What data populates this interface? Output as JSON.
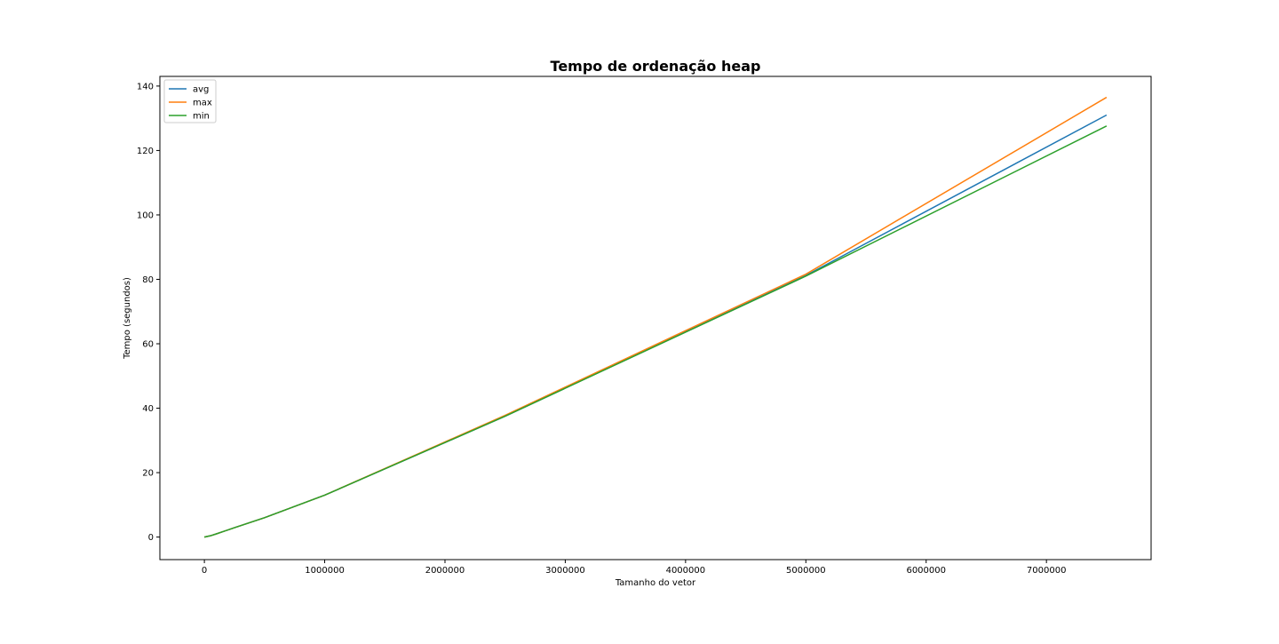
{
  "chart_data": {
    "type": "line",
    "title": "Tempo de ordenação heap",
    "xlabel": "Tamanho do vetor",
    "ylabel": "Tempo (segundos)",
    "xlim": [
      -370000,
      7870000
    ],
    "ylim": [
      -7,
      143
    ],
    "xticks": [
      0,
      1000000,
      2000000,
      3000000,
      4000000,
      5000000,
      6000000,
      7000000
    ],
    "xtick_labels": [
      "0",
      "1000000",
      "2000000",
      "3000000",
      "4000000",
      "5000000",
      "6000000",
      "7000000"
    ],
    "yticks": [
      0,
      20,
      40,
      60,
      80,
      100,
      120,
      140
    ],
    "ytick_labels": [
      "0",
      "20",
      "40",
      "60",
      "80",
      "100",
      "120",
      "140"
    ],
    "grid": false,
    "legend_position": "top-left",
    "x": [
      0,
      50000,
      100000,
      250000,
      500000,
      1000000,
      2500000,
      5000000,
      7500000
    ],
    "series": [
      {
        "name": "avg",
        "color": "#1f77b4",
        "values": [
          0,
          0.4,
          1.0,
          2.9,
          6.0,
          13.0,
          37.5,
          81.2,
          131.0
        ]
      },
      {
        "name": "max",
        "color": "#ff7f0e",
        "values": [
          0,
          0.4,
          1.0,
          2.9,
          6.0,
          13.0,
          37.8,
          81.6,
          136.5
        ]
      },
      {
        "name": "min",
        "color": "#2ca02c",
        "values": [
          0,
          0.4,
          1.0,
          2.9,
          6.0,
          13.0,
          37.5,
          81.0,
          127.6
        ]
      }
    ]
  }
}
